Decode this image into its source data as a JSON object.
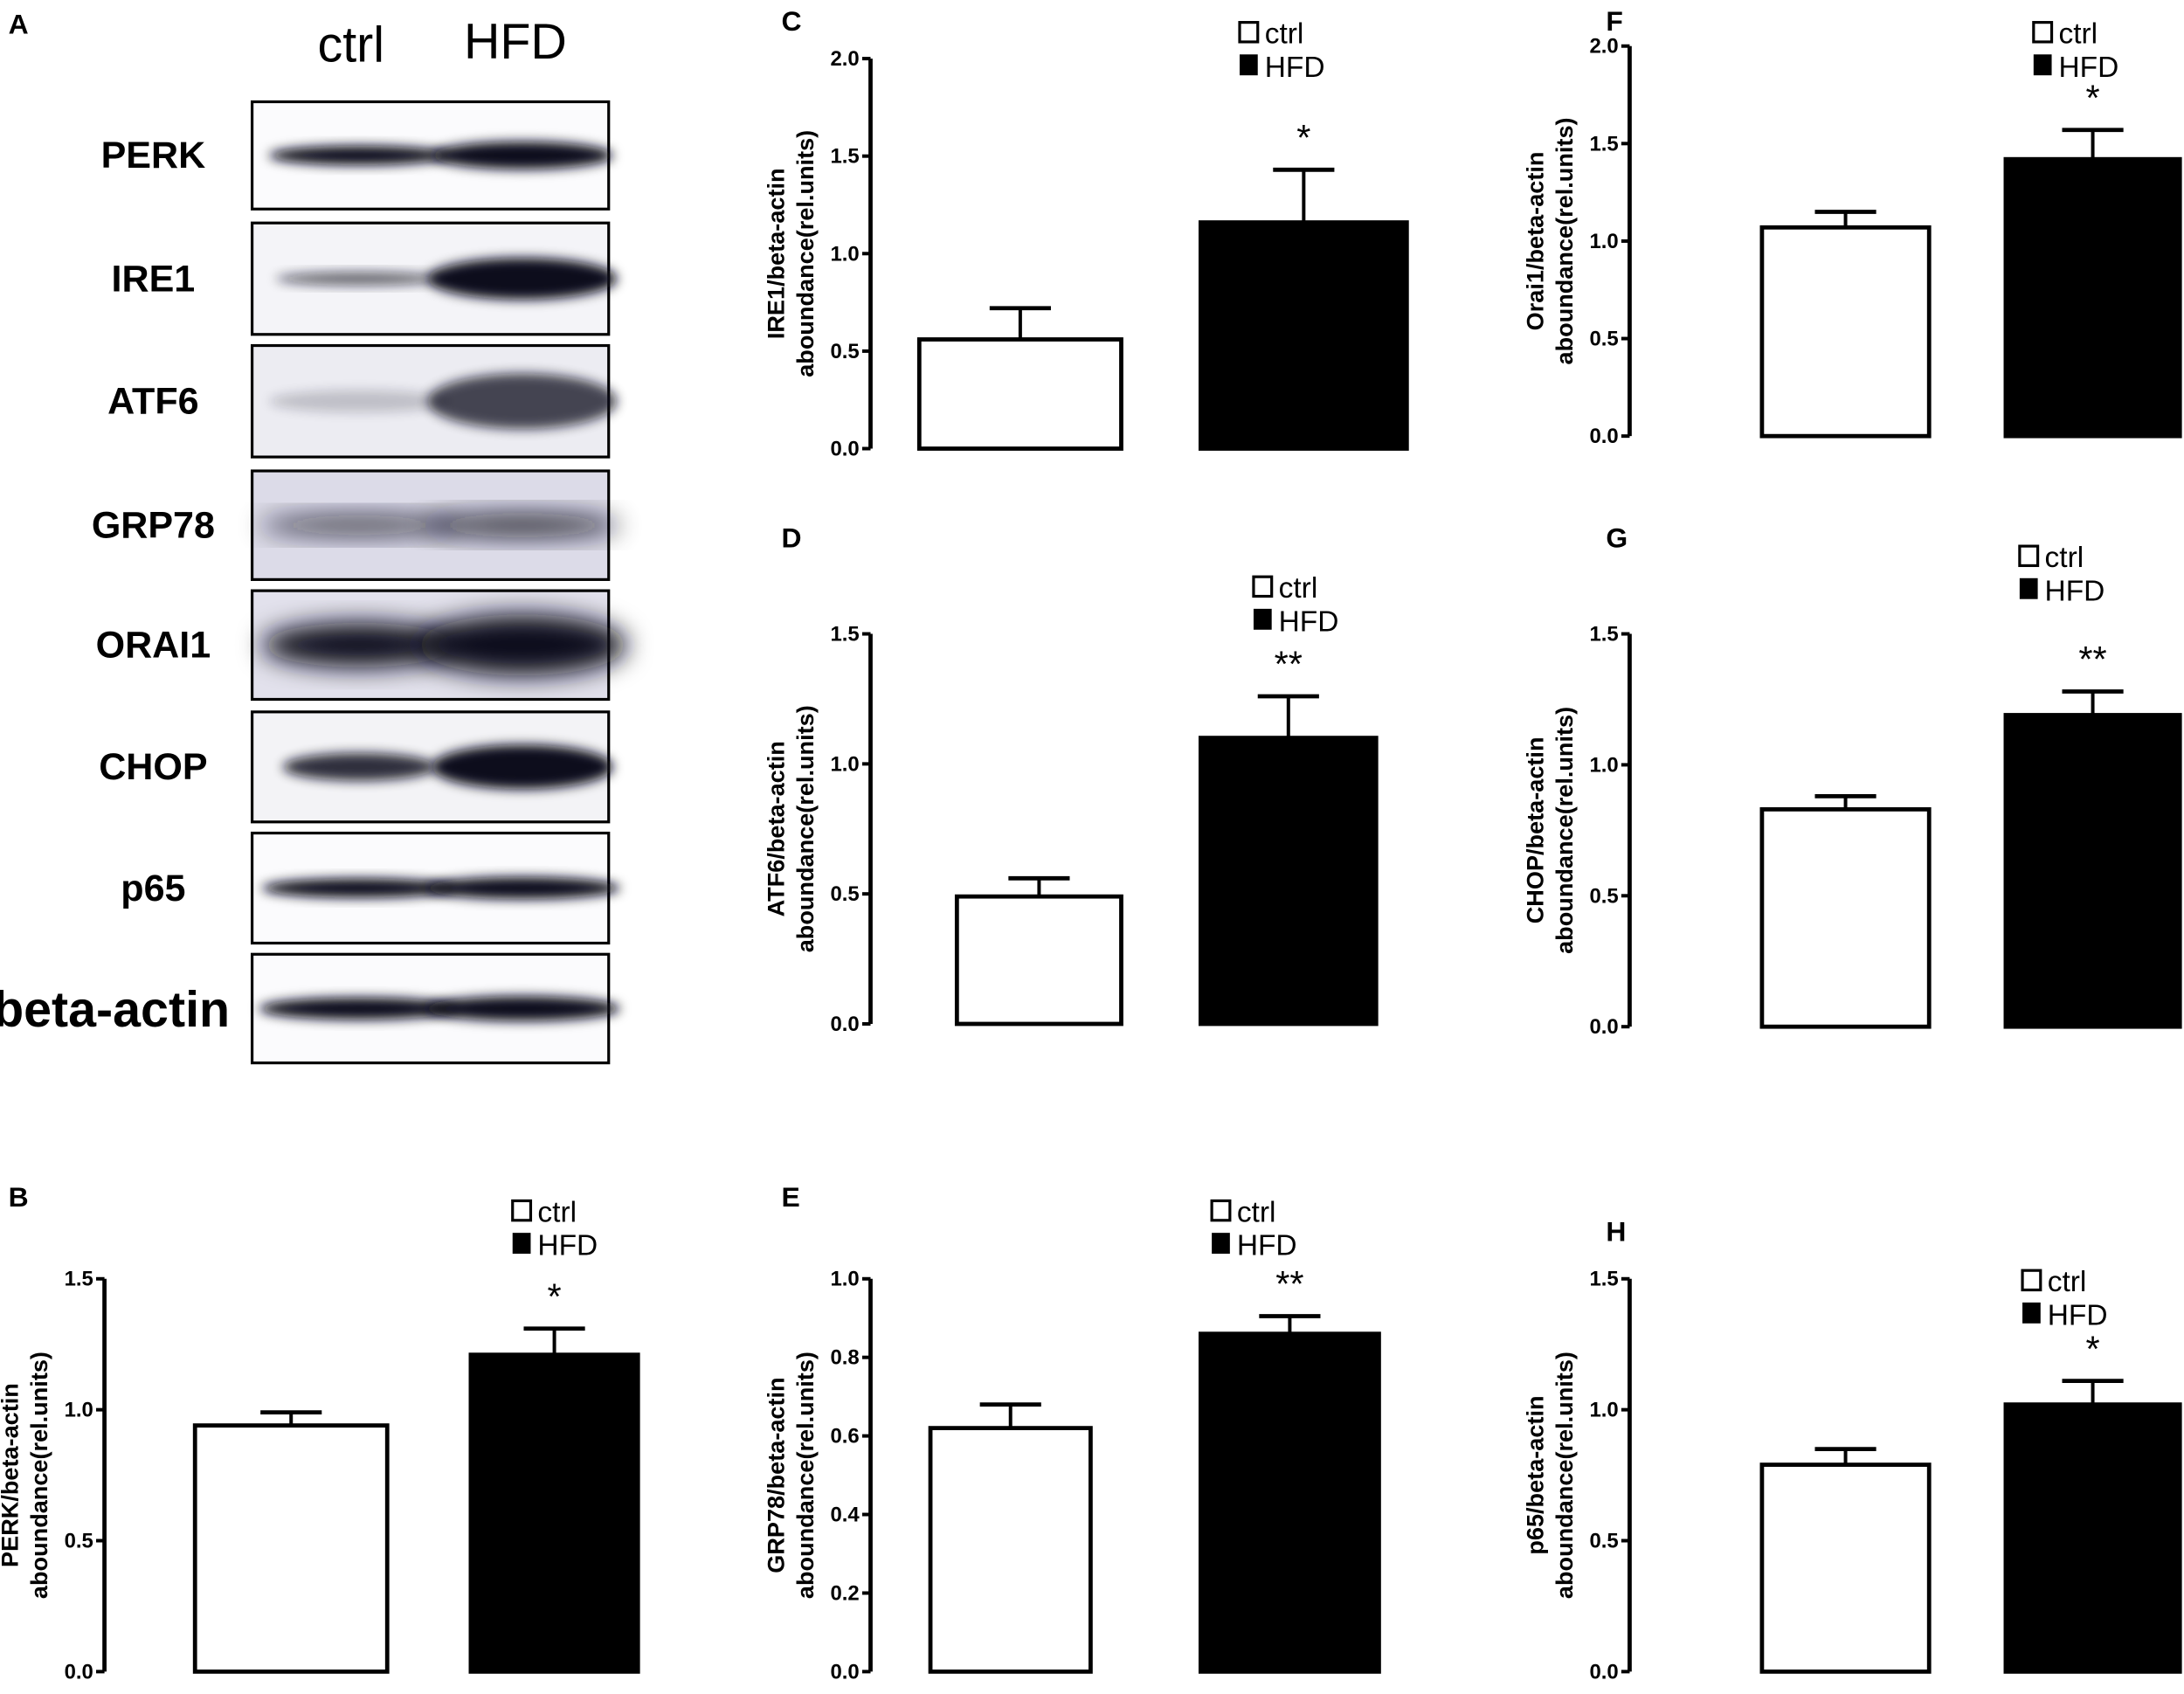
{
  "figure_panels": [
    "A",
    "B",
    "C",
    "D",
    "E",
    "F",
    "G",
    "H"
  ],
  "blot": {
    "panel": "A",
    "lanes": [
      "ctrl",
      "HFD"
    ],
    "proteins": [
      "PERK",
      "IRE1",
      "ATF6",
      "GRP78",
      "ORAI1",
      "CHOP",
      "p65",
      "beta-actin"
    ]
  },
  "colors": {
    "ctrl_fill": "#ffffff",
    "hfd_fill": "#000000",
    "axis": "#000000"
  },
  "chart_data": [
    {
      "panel": "B",
      "type": "bar",
      "categories": [
        "ctrl",
        "HFD"
      ],
      "values": [
        0.94,
        1.21
      ],
      "error_upper": [
        0.99,
        1.31
      ],
      "ylabel": [
        "PERK/beta-actin",
        "aboundance(rel.units)"
      ],
      "ylim": [
        0,
        1.5
      ],
      "yticks": [
        0.0,
        0.5,
        1.0,
        1.5
      ],
      "significance": [
        "",
        "*"
      ],
      "legend": [
        "ctrl",
        "HFD"
      ],
      "legend_position": "top-right",
      "grid": false
    },
    {
      "panel": "C",
      "type": "bar",
      "categories": [
        "ctrl",
        "HFD"
      ],
      "values": [
        0.56,
        1.16
      ],
      "error_upper": [
        0.72,
        1.43
      ],
      "ylabel": [
        "IRE1/beta-actin",
        "aboundance(rel.units)"
      ],
      "ylim": [
        0,
        2.0
      ],
      "yticks": [
        0.0,
        0.5,
        1.0,
        1.5,
        2.0
      ],
      "significance": [
        "",
        "*"
      ],
      "legend": [
        "ctrl",
        "HFD"
      ],
      "legend_position": "top-right",
      "grid": false
    },
    {
      "panel": "D",
      "type": "bar",
      "categories": [
        "ctrl",
        "HFD"
      ],
      "values": [
        0.49,
        1.1
      ],
      "error_upper": [
        0.56,
        1.26
      ],
      "ylabel": [
        "ATF6/beta-actin",
        "aboundance(rel.units)"
      ],
      "ylim": [
        0,
        1.5
      ],
      "yticks": [
        0.0,
        0.5,
        1.0,
        1.5
      ],
      "significance": [
        "",
        "**"
      ],
      "legend": [
        "ctrl",
        "HFD"
      ],
      "legend_position": "top-right",
      "grid": false
    },
    {
      "panel": "E",
      "type": "bar",
      "categories": [
        "ctrl",
        "HFD"
      ],
      "values": [
        0.62,
        0.86
      ],
      "error_upper": [
        0.68,
        0.905
      ],
      "ylabel": [
        "GRP78/beta-actin",
        "aboundance(rel.units)"
      ],
      "ylim": [
        0,
        1.0
      ],
      "yticks": [
        0.0,
        0.2,
        0.4,
        0.6,
        0.8,
        1.0
      ],
      "significance": [
        "",
        "**"
      ],
      "legend": [
        "ctrl",
        "HFD"
      ],
      "legend_position": "top-right",
      "grid": false
    },
    {
      "panel": "F",
      "type": "bar",
      "categories": [
        "ctrl",
        "HFD"
      ],
      "values": [
        1.07,
        1.42
      ],
      "error_upper": [
        1.15,
        1.57
      ],
      "ylabel": [
        "Orai1/beta-actin",
        "aboundance(rel.units)"
      ],
      "ylim": [
        0,
        2.0
      ],
      "yticks": [
        0.0,
        0.5,
        1.0,
        1.5,
        2.0
      ],
      "significance": [
        "",
        "*"
      ],
      "legend": [
        "ctrl",
        "HFD"
      ],
      "legend_position": "top-right",
      "grid": false
    },
    {
      "panel": "G",
      "type": "bar",
      "categories": [
        "ctrl",
        "HFD"
      ],
      "values": [
        0.83,
        1.19
      ],
      "error_upper": [
        0.88,
        1.28
      ],
      "ylabel": [
        "CHOP/beta-actin",
        "aboundance(rel.units)"
      ],
      "ylim": [
        0,
        1.5
      ],
      "yticks": [
        0.0,
        0.5,
        1.0,
        1.5
      ],
      "significance": [
        "",
        "**"
      ],
      "legend": [
        "ctrl",
        "HFD"
      ],
      "legend_position": "top-right",
      "grid": false
    },
    {
      "panel": "H",
      "type": "bar",
      "categories": [
        "ctrl",
        "HFD"
      ],
      "values": [
        0.79,
        1.02
      ],
      "error_upper": [
        0.85,
        1.11
      ],
      "ylabel": [
        "p65/beta-actin",
        "aboundance(rel.units)"
      ],
      "ylim": [
        0,
        1.5
      ],
      "yticks": [
        0.0,
        0.5,
        1.0,
        1.5
      ],
      "significance": [
        "",
        "*"
      ],
      "legend": [
        "ctrl",
        "HFD"
      ],
      "legend_position": "top-right",
      "grid": false
    }
  ]
}
